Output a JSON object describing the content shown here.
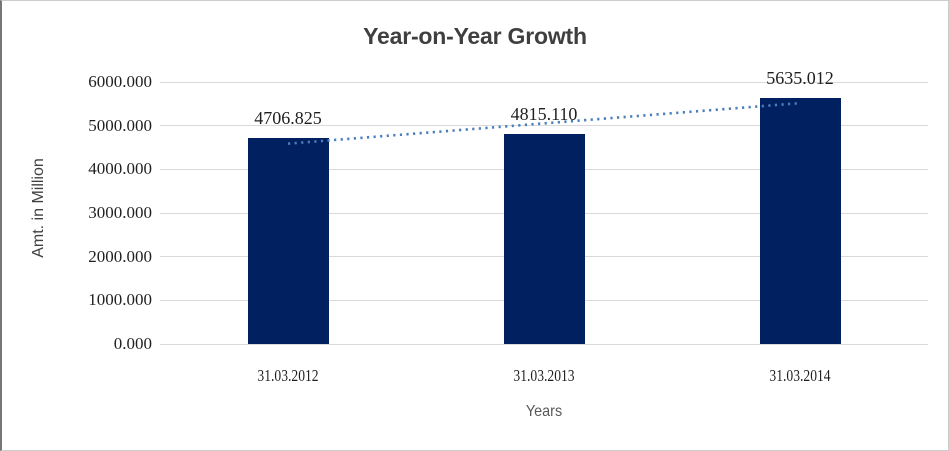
{
  "chart_data": {
    "type": "bar",
    "title": "Year-on-Year Growth",
    "xlabel": "Years",
    "ylabel": "Amt. in Million",
    "categories": [
      "31.03.2012",
      "31.03.2013",
      "31.03.2014"
    ],
    "values": [
      4706.825,
      4815.11,
      5635.012
    ],
    "data_labels": [
      "4706.825",
      "4815.110",
      "5635.012"
    ],
    "ylim": [
      0,
      6000
    ],
    "y_ticks": [
      "6000.000",
      "5000.000",
      "4000.000",
      "3000.000",
      "2000.000",
      "1000.000",
      "0.000"
    ],
    "grid": true,
    "legend": "none",
    "trendline": {
      "type": "linear",
      "style": "dotted",
      "color": "#4a7ebb"
    },
    "colors": {
      "bar": "#002060",
      "gridline": "#d9d9d9",
      "title_text": "#3f3f3f",
      "tick_text": "#1f1f1f",
      "axis_title_text": "#404040",
      "xlabel_text": "#595959"
    }
  }
}
